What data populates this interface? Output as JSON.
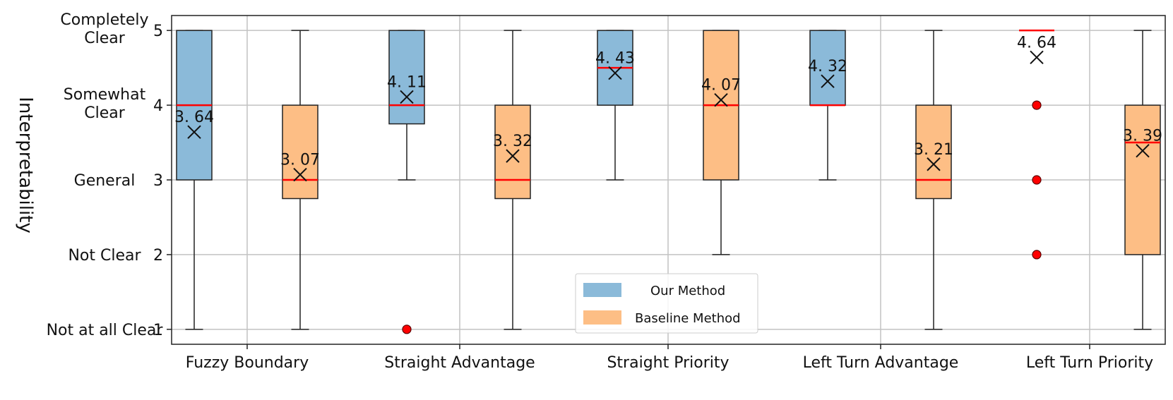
{
  "chart_data": {
    "type": "box",
    "ylabel": "Interpretability",
    "ylim": [
      0.8,
      5.2
    ],
    "yticks": [
      1,
      2,
      3,
      4,
      5
    ],
    "ytick_values": [
      "1",
      "2",
      "3",
      "4",
      "5"
    ],
    "ytick_texts": [
      [
        "Not at all Clear"
      ],
      [
        "Not Clear"
      ],
      [
        "General"
      ],
      [
        "Somewhat",
        "Clear"
      ],
      [
        "Completely",
        "Clear"
      ]
    ],
    "grid": true,
    "legend_position": "bottom-center",
    "categories": [
      "Fuzzy Boundary",
      "Straight Advantage",
      "Straight Priority",
      "Left Turn Advantage",
      "Left Turn Priority"
    ],
    "series": [
      {
        "name": "Our Method",
        "color": "#8bbad9",
        "boxes": [
          {
            "whisker_low": 1,
            "q1": 3,
            "median": 4,
            "q3": 5,
            "whisker_high": 5,
            "mean": 3.64,
            "mean_label": "3. 64",
            "outliers": []
          },
          {
            "whisker_low": 3,
            "q1": 3.75,
            "median": 4,
            "q3": 5,
            "whisker_high": 5,
            "mean": 4.11,
            "mean_label": "4. 11",
            "outliers": [
              1
            ]
          },
          {
            "whisker_low": 3,
            "q1": 4,
            "median": 4.5,
            "q3": 5,
            "whisker_high": 5,
            "mean": 4.43,
            "mean_label": "4. 43",
            "outliers": []
          },
          {
            "whisker_low": 3,
            "q1": 4,
            "median": 4,
            "q3": 5,
            "whisker_high": 5,
            "mean": 4.32,
            "mean_label": "4. 32",
            "outliers": []
          },
          {
            "whisker_low": 5,
            "q1": 5,
            "median": 5,
            "q3": 5,
            "whisker_high": 5,
            "mean": 4.64,
            "mean_label": "4. 64",
            "outliers": [
              4,
              3,
              2
            ]
          }
        ]
      },
      {
        "name": "Baseline Method",
        "color": "#fdbe85",
        "boxes": [
          {
            "whisker_low": 1,
            "q1": 2.75,
            "median": 3,
            "q3": 4,
            "whisker_high": 5,
            "mean": 3.07,
            "mean_label": "3. 07",
            "outliers": []
          },
          {
            "whisker_low": 1,
            "q1": 2.75,
            "median": 3,
            "q3": 4,
            "whisker_high": 5,
            "mean": 3.32,
            "mean_label": "3. 32",
            "outliers": []
          },
          {
            "whisker_low": 2,
            "q1": 3,
            "median": 4,
            "q3": 5,
            "whisker_high": 5,
            "mean": 4.07,
            "mean_label": "4. 07",
            "outliers": []
          },
          {
            "whisker_low": 1,
            "q1": 2.75,
            "median": 3,
            "q3": 4,
            "whisker_high": 5,
            "mean": 3.21,
            "mean_label": "3. 21",
            "outliers": []
          },
          {
            "whisker_low": 1,
            "q1": 2,
            "median": 3.5,
            "q3": 4,
            "whisker_high": 5,
            "mean": 3.39,
            "mean_label": "3. 39",
            "outliers": []
          }
        ]
      }
    ],
    "median_color": "#ff0000",
    "outlier_color": "#ff0000"
  }
}
